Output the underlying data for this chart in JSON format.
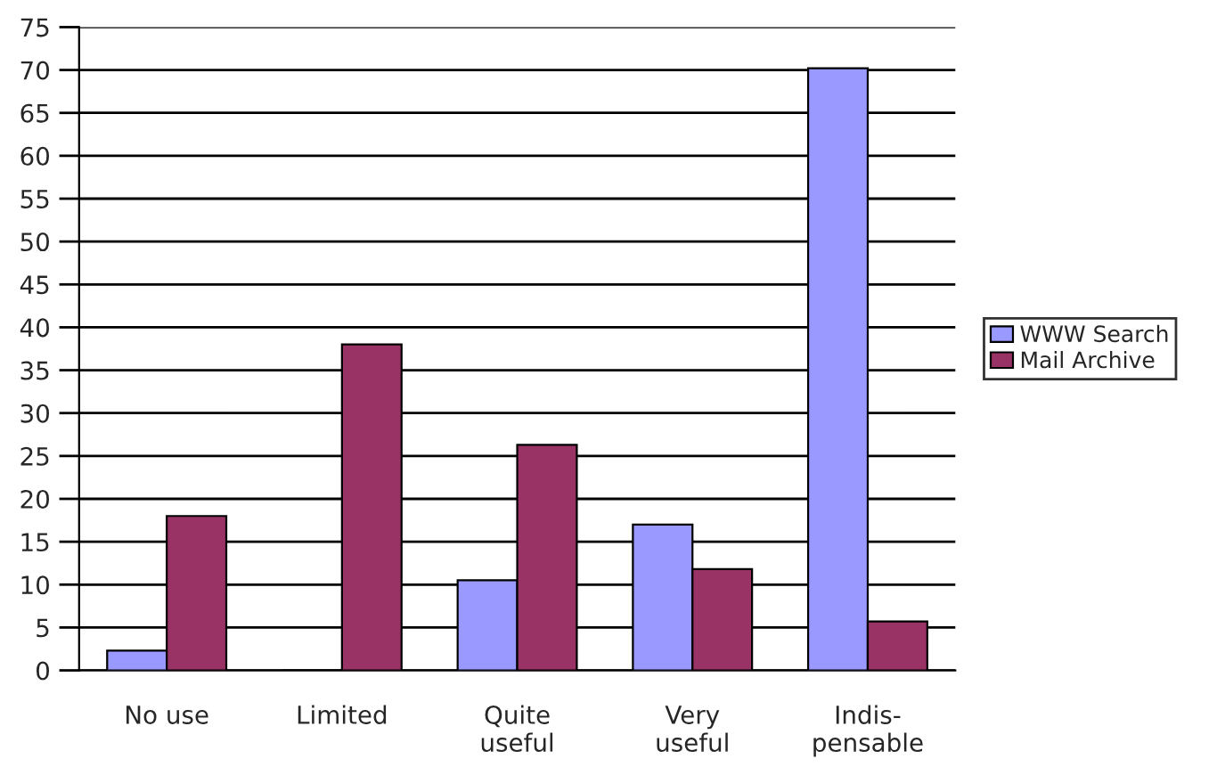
{
  "chart_data": {
    "type": "bar",
    "categories": [
      "No use",
      "Limited",
      "Quite\nuseful",
      "Very\nuseful",
      "Indis-\npensable"
    ],
    "series": [
      {
        "name": "WWW Search",
        "color": "#9999ff",
        "values": [
          2.3,
          0,
          10.5,
          17,
          70.2
        ]
      },
      {
        "name": "Mail Archive",
        "color": "#993366",
        "values": [
          18,
          38,
          26.3,
          11.8,
          5.7
        ]
      }
    ],
    "ylim": [
      0,
      75
    ],
    "yticks": [
      0,
      5,
      10,
      15,
      20,
      25,
      30,
      35,
      40,
      45,
      50,
      55,
      60,
      65,
      70,
      75
    ],
    "grid": "y",
    "legend": "right"
  }
}
